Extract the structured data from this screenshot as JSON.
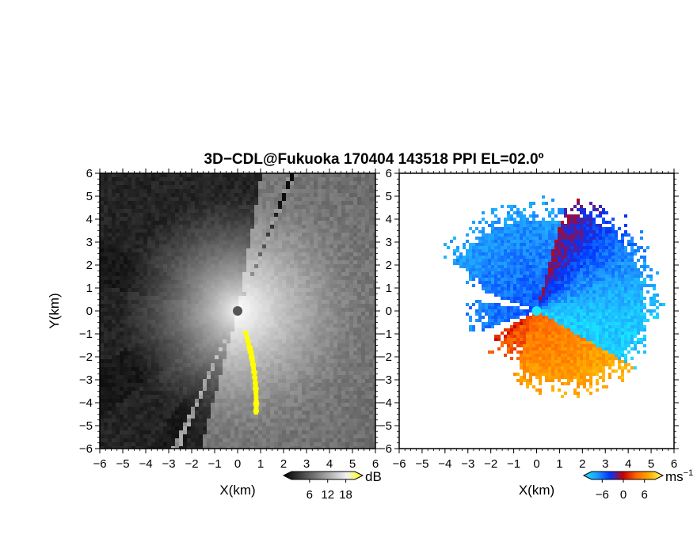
{
  "title": "3D−CDL@Fukuoka 170404 143518 PPI EL=02.0º",
  "chart_data": [
    {
      "type": "heatmap",
      "name": "power",
      "xlabel": "X(km)",
      "ylabel": "Y(km)",
      "xlim": [
        -6,
        6
      ],
      "ylim": [
        -6,
        6
      ],
      "xticks": [
        "−6",
        "−5",
        "−4",
        "−3",
        "−2",
        "−1",
        "0",
        "1",
        "2",
        "3",
        "4",
        "5",
        "6"
      ],
      "yticks": [
        "6",
        "5",
        "4",
        "3",
        "2",
        "1",
        "0",
        "−1",
        "−2",
        "−3",
        "−4",
        "−5",
        "−6"
      ],
      "colorbar": {
        "label": "dB",
        "ticks": [
          "6",
          "12",
          "18"
        ],
        "tick_values": [
          6,
          12,
          18
        ],
        "range": [
          0,
          21
        ],
        "colors": [
          "#000000",
          "#3a3a3a",
          "#777777",
          "#b5b5b5",
          "#f2f2f2",
          "#ffff00"
        ]
      },
      "features": {
        "bright_sector_bearing_deg": [
          10,
          195
        ],
        "blocked_sector_bearing_deg": [
          [
            202,
            212
          ],
          [
            280,
            298
          ],
          [
            232,
            250
          ]
        ],
        "beam_bearing_deg": [
          22,
          204
        ],
        "high_return_bearing_deg": [
          160,
          170
        ],
        "high_return_range_km": [
          1.0,
          4.6
        ],
        "high_return_color": "#ffff00"
      }
    },
    {
      "type": "heatmap",
      "name": "doppler_velocity",
      "xlabel": "X(km)",
      "xlim": [
        -6,
        6
      ],
      "ylim": [
        -6,
        6
      ],
      "xticks": [
        "−6",
        "−5",
        "−4",
        "−3",
        "−2",
        "−1",
        "0",
        "1",
        "2",
        "3",
        "4",
        "5",
        "6"
      ],
      "yticks": [
        "6",
        "5",
        "4",
        "3",
        "2",
        "1",
        "0",
        "−1",
        "−2",
        "−3",
        "−4",
        "−5",
        "−6"
      ],
      "colorbar": {
        "label": "ms",
        "label_sup": "−1",
        "ticks": [
          "−6",
          "0",
          "6"
        ],
        "tick_values": [
          -6,
          0,
          6
        ],
        "range": [
          -9,
          9
        ],
        "colors": [
          "#19e6ff",
          "#1f9bff",
          "#0033ff",
          "#cc0000",
          "#ff6600",
          "#ffb000",
          "#ffff66"
        ]
      },
      "features": {
        "max_range_km": 5.4,
        "approaching_velocity_ms": -6,
        "receding_velocity_ms": 6,
        "zero_velocity_bearing_deg": 25
      }
    }
  ]
}
